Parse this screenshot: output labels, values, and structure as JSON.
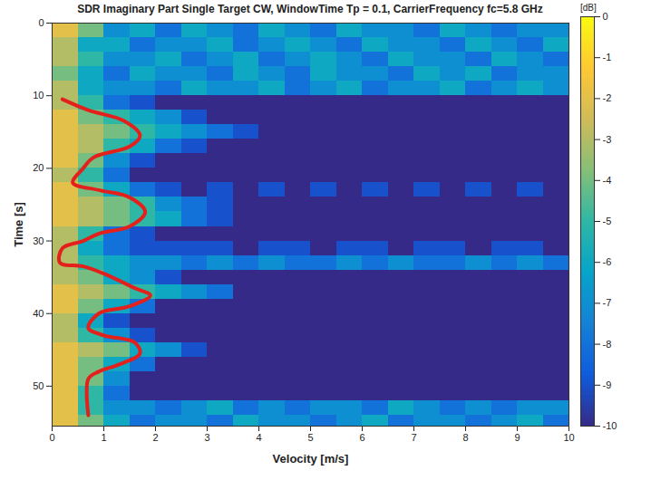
{
  "chart_data": {
    "type": "heatmap",
    "title": "SDR Imaginary Part Single Target CW, WindowTime Tp = 0.1, CarrierFrequency fc=5.8 GHz",
    "xlabel": "Velocity [m/s]",
    "ylabel": "Time [s]",
    "xlim": [
      0,
      10
    ],
    "xticks": [
      0,
      1,
      2,
      3,
      4,
      5,
      6,
      7,
      8,
      9,
      10
    ],
    "ylim": [
      0,
      55.5
    ],
    "yticks": [
      0,
      10,
      20,
      30,
      40,
      50
    ],
    "colorbar": {
      "label": "[dB]",
      "range": [
        -10,
        0
      ],
      "ticks": [
        0,
        -1,
        -2,
        -3,
        -4,
        -5,
        -6,
        -7,
        -8,
        -9,
        -10
      ]
    },
    "cells": {
      "x_bins": [
        0,
        0.5,
        1,
        1.5,
        2,
        2.5,
        3,
        3.5,
        4,
        4.5,
        5,
        5.5,
        6,
        6.5,
        7,
        7.5,
        8,
        8.5,
        9,
        9.5,
        10
      ],
      "y_bins": [
        0,
        2,
        4,
        6,
        8,
        10,
        12,
        14,
        16,
        18,
        20,
        22,
        24,
        26,
        28,
        30,
        32,
        34,
        36,
        38,
        40,
        42,
        44,
        46,
        48,
        50,
        52,
        54,
        56
      ],
      "z": [
        [
          -2,
          -4,
          -7,
          -6,
          -8,
          -6,
          -7,
          -8,
          -6,
          -7,
          -8,
          -6,
          -7,
          -7,
          -8,
          -6,
          -7,
          -8,
          -7,
          -7
        ],
        [
          -3,
          -6,
          -6,
          -8,
          -7,
          -7,
          -6,
          -8,
          -7,
          -6,
          -7,
          -8,
          -6,
          -7,
          -7,
          -8,
          -6,
          -7,
          -8,
          -6
        ],
        [
          -3,
          -5,
          -7,
          -7,
          -6,
          -8,
          -7,
          -6,
          -8,
          -7,
          -6,
          -7,
          -8,
          -6,
          -7,
          -7,
          -8,
          -6,
          -7,
          -8
        ],
        [
          -4,
          -6,
          -8,
          -6,
          -7,
          -7,
          -8,
          -6,
          -7,
          -8,
          -6,
          -7,
          -7,
          -8,
          -6,
          -7,
          -6,
          -8,
          -7,
          -7
        ],
        [
          -3,
          -6,
          -7,
          -7,
          -8,
          -6,
          -7,
          -7,
          -6,
          -8,
          -7,
          -6,
          -8,
          -7,
          -7,
          -6,
          -8,
          -7,
          -6,
          -7
        ],
        [
          -3,
          -5,
          -8,
          -9,
          -10,
          -10,
          -10,
          -10,
          -10,
          -10,
          -10,
          -10,
          -10,
          -10,
          -10,
          -10,
          -10,
          -10,
          -10,
          -10
        ],
        [
          -2,
          -4,
          -5,
          -6,
          -7,
          -9,
          -10,
          -10,
          -10,
          -10,
          -10,
          -10,
          -10,
          -10,
          -10,
          -10,
          -10,
          -10,
          -10,
          -10
        ],
        [
          -2,
          -3,
          -4,
          -5,
          -6,
          -7,
          -8,
          -9,
          -10,
          -10,
          -10,
          -10,
          -10,
          -10,
          -10,
          -10,
          -10,
          -10,
          -10,
          -10
        ],
        [
          -2,
          -3,
          -5,
          -6,
          -8,
          -9,
          -10,
          -10,
          -10,
          -10,
          -10,
          -10,
          -10,
          -10,
          -10,
          -10,
          -10,
          -10,
          -10,
          -10
        ],
        [
          -2,
          -4,
          -7,
          -9,
          -10,
          -10,
          -10,
          -10,
          -10,
          -10,
          -10,
          -10,
          -10,
          -10,
          -10,
          -10,
          -10,
          -10,
          -10,
          -10
        ],
        [
          -3,
          -5,
          -8,
          -10,
          -10,
          -10,
          -10,
          -10,
          -10,
          -10,
          -10,
          -10,
          -10,
          -10,
          -10,
          -10,
          -10,
          -10,
          -10,
          -10
        ],
        [
          -2,
          -4,
          -6,
          -8,
          -9,
          -10,
          -9,
          -10,
          -9,
          -10,
          -9,
          -10,
          -9,
          -10,
          -9,
          -10,
          -9,
          -10,
          -9,
          -10
        ],
        [
          -2,
          -3,
          -4,
          -5,
          -7,
          -8,
          -9,
          -10,
          -10,
          -10,
          -10,
          -10,
          -10,
          -10,
          -10,
          -10,
          -10,
          -10,
          -10,
          -10
        ],
        [
          -2,
          -3,
          -4,
          -5,
          -6,
          -8,
          -9,
          -10,
          -10,
          -10,
          -10,
          -10,
          -10,
          -10,
          -10,
          -10,
          -10,
          -10,
          -10,
          -10
        ],
        [
          -3,
          -5,
          -8,
          -9,
          -10,
          -10,
          -10,
          -10,
          -10,
          -10,
          -10,
          -10,
          -10,
          -10,
          -10,
          -10,
          -10,
          -10,
          -10,
          -10
        ],
        [
          -3,
          -6,
          -8,
          -9,
          -9,
          -9,
          -9,
          -10,
          -9,
          -9,
          -10,
          -9,
          -9,
          -10,
          -9,
          -9,
          -10,
          -9,
          -9,
          -10
        ],
        [
          -3,
          -5,
          -6,
          -7,
          -7,
          -8,
          -7,
          -8,
          -7,
          -8,
          -8,
          -7,
          -8,
          -7,
          -8,
          -8,
          -7,
          -8,
          -7,
          -8
        ],
        [
          -3,
          -4,
          -6,
          -7,
          -9,
          -10,
          -10,
          -10,
          -10,
          -10,
          -10,
          -10,
          -10,
          -10,
          -10,
          -10,
          -10,
          -10,
          -10,
          -10
        ],
        [
          -2,
          -3,
          -4,
          -5,
          -6,
          -7,
          -8,
          -10,
          -10,
          -10,
          -10,
          -10,
          -10,
          -10,
          -10,
          -10,
          -10,
          -10,
          -10,
          -10
        ],
        [
          -2,
          -4,
          -6,
          -8,
          -10,
          -10,
          -10,
          -10,
          -10,
          -10,
          -10,
          -10,
          -10,
          -10,
          -10,
          -10,
          -10,
          -10,
          -10,
          -10
        ],
        [
          -3,
          -6,
          -9,
          -10,
          -10,
          -10,
          -10,
          -10,
          -10,
          -10,
          -10,
          -10,
          -10,
          -10,
          -10,
          -10,
          -10,
          -10,
          -10,
          -10
        ],
        [
          -3,
          -5,
          -7,
          -9,
          -10,
          -10,
          -10,
          -10,
          -10,
          -10,
          -10,
          -10,
          -10,
          -10,
          -10,
          -10,
          -10,
          -10,
          -10,
          -10
        ],
        [
          -2,
          -3,
          -4,
          -6,
          -7,
          -9,
          -10,
          -10,
          -10,
          -10,
          -10,
          -10,
          -10,
          -10,
          -10,
          -10,
          -10,
          -10,
          -10,
          -10
        ],
        [
          -2,
          -4,
          -6,
          -8,
          -10,
          -10,
          -10,
          -10,
          -10,
          -10,
          -10,
          -10,
          -10,
          -10,
          -10,
          -10,
          -10,
          -10,
          -10,
          -10
        ],
        [
          -2,
          -4,
          -7,
          -10,
          -10,
          -10,
          -10,
          -10,
          -10,
          -10,
          -10,
          -10,
          -10,
          -10,
          -10,
          -10,
          -10,
          -10,
          -10,
          -10
        ],
        [
          -2,
          -5,
          -8,
          -10,
          -10,
          -10,
          -10,
          -10,
          -10,
          -10,
          -10,
          -10,
          -10,
          -10,
          -10,
          -10,
          -10,
          -10,
          -10,
          -10
        ],
        [
          -2,
          -5,
          -7,
          -7,
          -8,
          -7,
          -6,
          -8,
          -7,
          -8,
          -7,
          -7,
          -8,
          -6,
          -7,
          -8,
          -7,
          -8,
          -7,
          -7
        ],
        [
          -2,
          -4,
          -6,
          -8,
          -7,
          -7,
          -8,
          -6,
          -7,
          -7,
          -8,
          -7,
          -6,
          -8,
          -7,
          -7,
          -8,
          -7,
          -6,
          -8
        ]
      ]
    },
    "overlay": {
      "type": "line",
      "color": "#e3201b",
      "x": [
        0.2,
        0.7,
        1.4,
        1.7,
        1.5,
        0.8,
        0.6,
        0.4,
        0.9,
        1.5,
        1.8,
        1.5,
        0.9,
        0.6,
        0.2,
        0.15,
        0.6,
        1.0,
        1.6,
        1.9,
        1.5,
        0.9,
        0.7,
        1.0,
        1.6,
        1.7,
        1.3,
        0.9,
        0.7,
        0.7
      ],
      "y": [
        10.5,
        12,
        13.5,
        15.5,
        17,
        18.5,
        20,
        22,
        23,
        24,
        26,
        28,
        29,
        30,
        31,
        33,
        33.5,
        34.5,
        36.5,
        37.5,
        39,
        40,
        42,
        43,
        44,
        45.5,
        47,
        48,
        49,
        54
      ]
    }
  }
}
